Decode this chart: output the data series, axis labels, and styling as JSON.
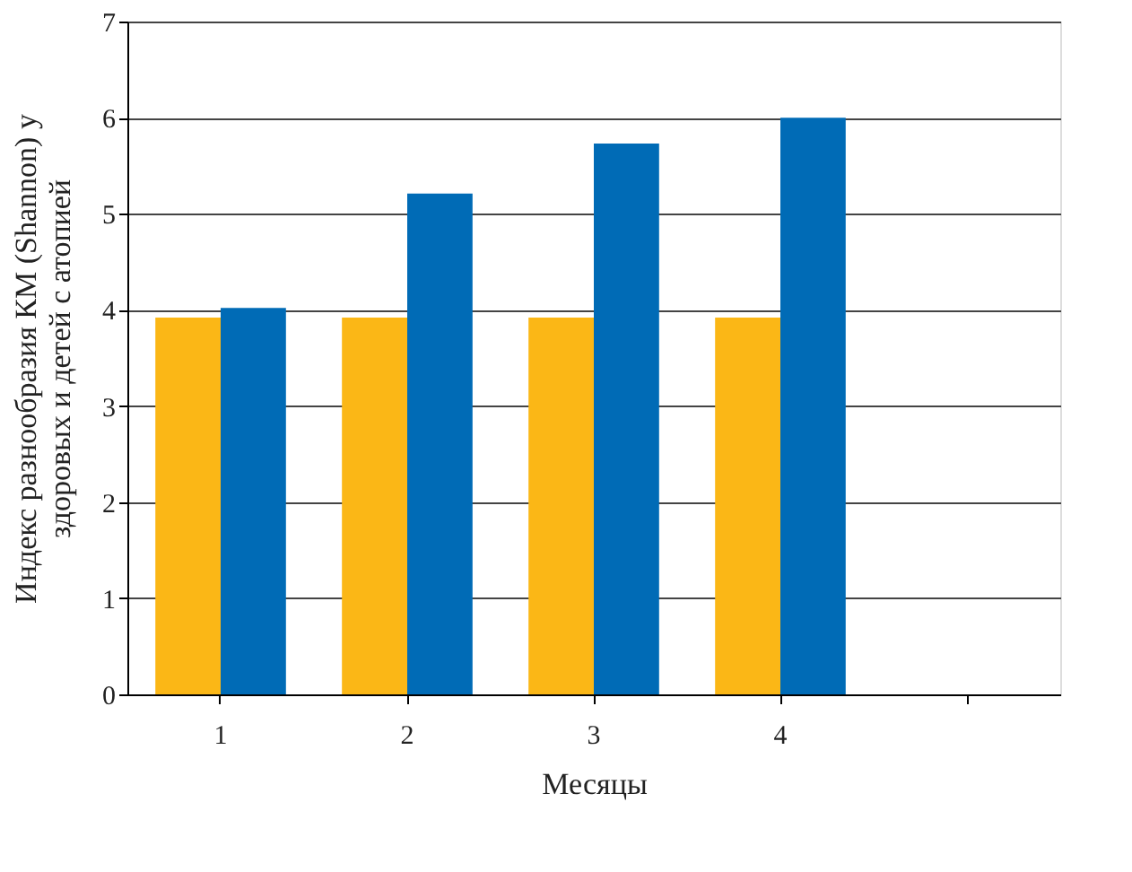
{
  "chart_data": {
    "type": "bar",
    "xlabel": "Месяцы",
    "ylabel": "Индекс разнообразия КМ (Shannon) у\nздоровых и детей с атопией",
    "categories": [
      "1",
      "2",
      "3",
      "4",
      null
    ],
    "series": [
      {
        "color": "#fbb716",
        "values": [
          3.92,
          3.92,
          3.92,
          3.92,
          null
        ]
      },
      {
        "color": "#006bb6",
        "values": [
          4.02,
          5.21,
          5.73,
          6.0,
          null
        ]
      }
    ],
    "ylim": [
      0,
      7
    ],
    "yticks": [
      0,
      1,
      2,
      3,
      4,
      5,
      6,
      7
    ],
    "grid": "y"
  }
}
